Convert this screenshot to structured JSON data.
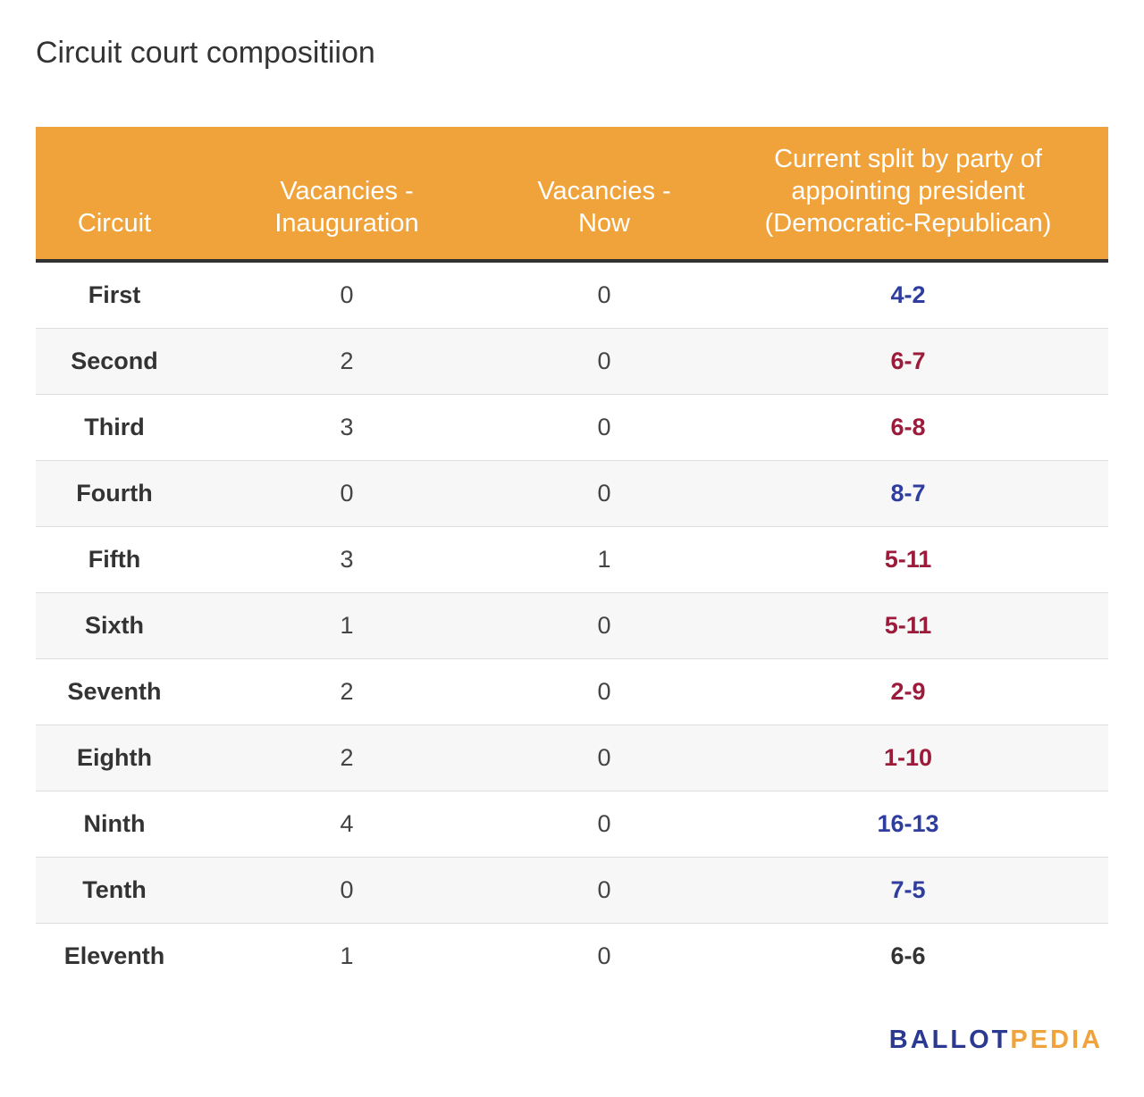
{
  "title": "Circuit court compositiion",
  "colors": {
    "header_bg": "#f0a33a",
    "democratic": "#2f3e9e",
    "republican": "#9b1b3b",
    "even": "#333333"
  },
  "chart_data": {
    "type": "table",
    "title": "Circuit court compositiion",
    "columns": [
      "Circuit",
      "Vacancies - Inauguration",
      "Vacancies - Now",
      "Current split by party of appointing president (Democratic-Republican)"
    ],
    "header": {
      "circuit": "Circuit",
      "vac_inaug_l1": "Vacancies -",
      "vac_inaug_l2": "Inauguration",
      "vac_now_l1": "Vacancies -",
      "vac_now_l2": "Now",
      "split_l1": "Current split by party of",
      "split_l2": "appointing president",
      "split_l3": "(Democratic-Republican)"
    },
    "rows": [
      {
        "circuit": "First",
        "vac_inaug": "0",
        "vac_now": "0",
        "split": "4-2",
        "lean": "democratic"
      },
      {
        "circuit": "Second",
        "vac_inaug": "2",
        "vac_now": "0",
        "split": "6-7",
        "lean": "republican"
      },
      {
        "circuit": "Third",
        "vac_inaug": "3",
        "vac_now": "0",
        "split": "6-8",
        "lean": "republican"
      },
      {
        "circuit": "Fourth",
        "vac_inaug": "0",
        "vac_now": "0",
        "split": "8-7",
        "lean": "democratic"
      },
      {
        "circuit": "Fifth",
        "vac_inaug": "3",
        "vac_now": "1",
        "split": "5-11",
        "lean": "republican"
      },
      {
        "circuit": "Sixth",
        "vac_inaug": "1",
        "vac_now": "0",
        "split": "5-11",
        "lean": "republican"
      },
      {
        "circuit": "Seventh",
        "vac_inaug": "2",
        "vac_now": "0",
        "split": "2-9",
        "lean": "republican"
      },
      {
        "circuit": "Eighth",
        "vac_inaug": "2",
        "vac_now": "0",
        "split": "1-10",
        "lean": "republican"
      },
      {
        "circuit": "Ninth",
        "vac_inaug": "4",
        "vac_now": "0",
        "split": "16-13",
        "lean": "democratic"
      },
      {
        "circuit": "Tenth",
        "vac_inaug": "0",
        "vac_now": "0",
        "split": "7-5",
        "lean": "democratic"
      },
      {
        "circuit": "Eleventh",
        "vac_inaug": "1",
        "vac_now": "0",
        "split": "6-6",
        "lean": "even"
      }
    ]
  },
  "logo": {
    "part1": "BALLOT",
    "part2": "PEDIA"
  }
}
